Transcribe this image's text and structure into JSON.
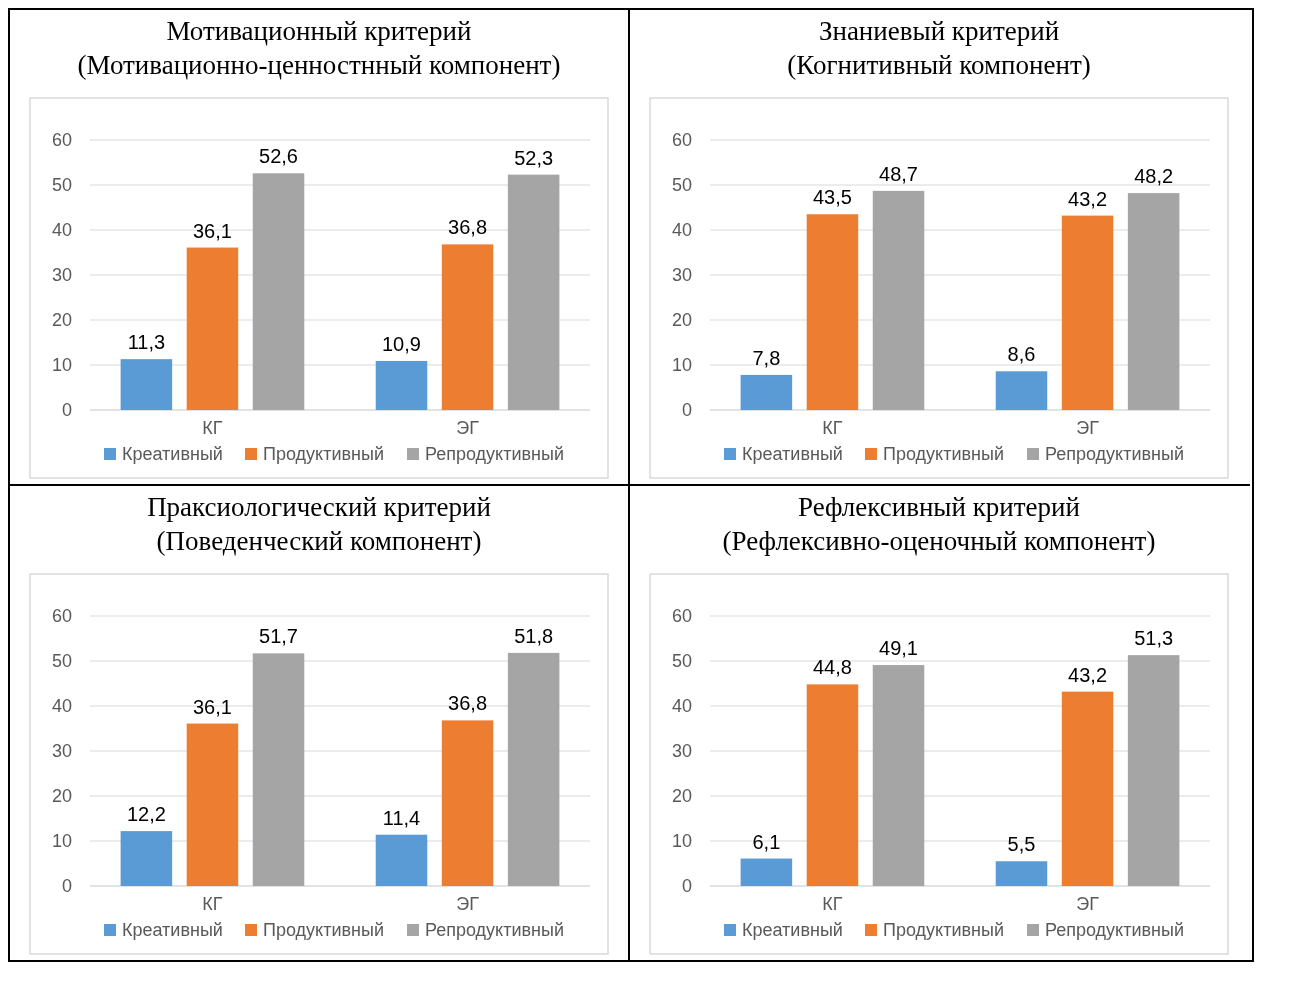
{
  "chart_data": [
    {
      "type": "bar",
      "title": "Мотивационный критерий",
      "subtitle": "(Мотивационно-ценностнный компонент)",
      "categories": [
        "КГ",
        "ЭГ"
      ],
      "series": [
        {
          "name": "Креативный",
          "color": "#5b9bd5",
          "values": [
            11.3,
            10.9
          ],
          "value_labels": [
            "11,3",
            "10,9"
          ]
        },
        {
          "name": "Продуктивный",
          "color": "#ed7d31",
          "values": [
            36.1,
            36.8
          ],
          "value_labels": [
            "36,1",
            "36,8"
          ]
        },
        {
          "name": "Репродуктивный",
          "color": "#a5a5a5",
          "values": [
            52.6,
            52.3
          ],
          "value_labels": [
            "52,6",
            "52,3"
          ]
        }
      ],
      "ylim": [
        0,
        60
      ],
      "yticks": [
        0,
        10,
        20,
        30,
        40,
        50,
        60
      ],
      "grid": "y",
      "legend": "bottom"
    },
    {
      "type": "bar",
      "title": "Знаниевый критерий",
      "subtitle": "(Когнитивный компонент)",
      "categories": [
        "КГ",
        "ЭГ"
      ],
      "series": [
        {
          "name": "Креативный",
          "color": "#5b9bd5",
          "values": [
            7.8,
            8.6
          ],
          "value_labels": [
            "7,8",
            "8,6"
          ]
        },
        {
          "name": "Продуктивный",
          "color": "#ed7d31",
          "values": [
            43.5,
            43.2
          ],
          "value_labels": [
            "43,5",
            "43,2"
          ]
        },
        {
          "name": "Репродуктивный",
          "color": "#a5a5a5",
          "values": [
            48.7,
            48.2
          ],
          "value_labels": [
            "48,7",
            "48,2"
          ]
        }
      ],
      "ylim": [
        0,
        60
      ],
      "yticks": [
        0,
        10,
        20,
        30,
        40,
        50,
        60
      ],
      "grid": "y",
      "legend": "bottom"
    },
    {
      "type": "bar",
      "title": "Праксиологический критерий",
      "subtitle": "(Поведенческий компонент)",
      "categories": [
        "КГ",
        "ЭГ"
      ],
      "series": [
        {
          "name": "Креативный",
          "color": "#5b9bd5",
          "values": [
            12.2,
            11.4
          ],
          "value_labels": [
            "12,2",
            "11,4"
          ]
        },
        {
          "name": "Продуктивный",
          "color": "#ed7d31",
          "values": [
            36.1,
            36.8
          ],
          "value_labels": [
            "36,1",
            "36,8"
          ]
        },
        {
          "name": "Репродуктивный",
          "color": "#a5a5a5",
          "values": [
            51.7,
            51.8
          ],
          "value_labels": [
            "51,7",
            "51,8"
          ]
        }
      ],
      "ylim": [
        0,
        60
      ],
      "yticks": [
        0,
        10,
        20,
        30,
        40,
        50,
        60
      ],
      "grid": "y",
      "legend": "bottom"
    },
    {
      "type": "bar",
      "title": "Рефлексивный критерий",
      "subtitle": "(Рефлексивно-оценочный компонент)",
      "categories": [
        "КГ",
        "ЭГ"
      ],
      "series": [
        {
          "name": "Креативный",
          "color": "#5b9bd5",
          "values": [
            6.1,
            5.5
          ],
          "value_labels": [
            "6,1",
            "5,5"
          ]
        },
        {
          "name": "Продуктивный",
          "color": "#ed7d31",
          "values": [
            44.8,
            43.2
          ],
          "value_labels": [
            "44,8",
            "43,2"
          ]
        },
        {
          "name": "Репродуктивный",
          "color": "#a5a5a5",
          "values": [
            49.1,
            51.3
          ],
          "value_labels": [
            "49,1",
            "51,3"
          ]
        }
      ],
      "ylim": [
        0,
        60
      ],
      "yticks": [
        0,
        10,
        20,
        30,
        40,
        50,
        60
      ],
      "grid": "y",
      "legend": "bottom"
    }
  ]
}
